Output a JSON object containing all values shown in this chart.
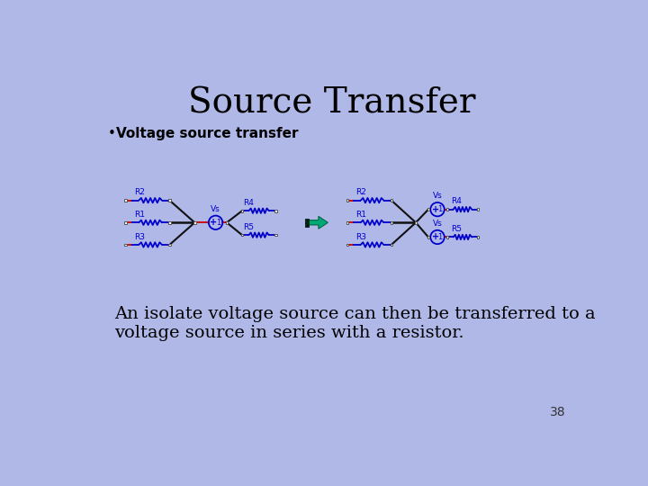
{
  "bg_color": "#b0b8e8",
  "title": "Source Transfer",
  "title_fontsize": 28,
  "title_color": "#000000",
  "bullet_text": "Voltage source transfer",
  "bullet_fontsize": 11,
  "body_text": "An isolate voltage source can then be transferred to a\nvoltage source in series with a resistor.",
  "body_fontsize": 14,
  "page_number": "38",
  "wire_color": "#cc0000",
  "black_wire_color": "#111111",
  "resistor_color": "#0000cc",
  "circle_color": "#0000cc",
  "node_color": "#ffffff",
  "arrow_fill": "#00aa77",
  "arrow_dark": "#004433"
}
